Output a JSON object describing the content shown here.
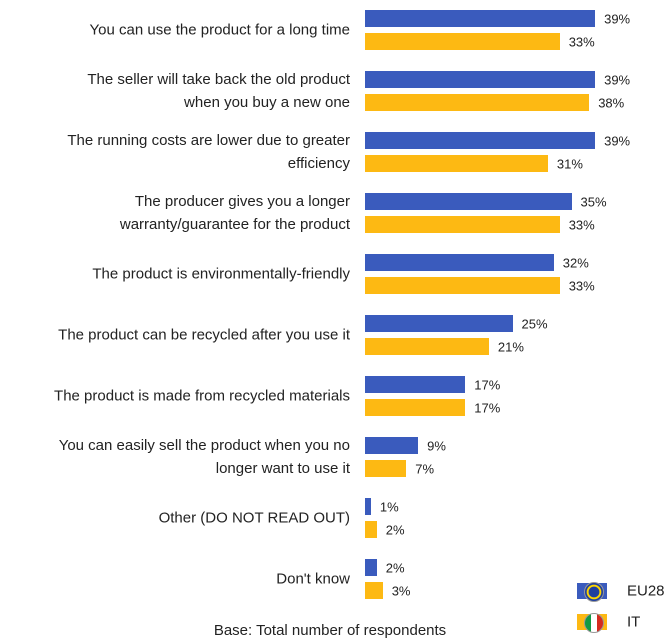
{
  "chart_data": {
    "type": "hbar",
    "categories": [
      "You can use the product for a long time",
      "The seller will take back the old product\nwhen you buy a new one",
      "The running costs are lower due to greater\nefficiency",
      "The producer gives you a longer\nwarranty/guarantee for the product",
      "The product is environmentally-friendly",
      "The product can be recycled after you use it",
      "The product is made from recycled materials",
      "You can easily sell the product when you no\nlonger want to use it",
      "Other (DO NOT READ OUT)",
      "Don't know"
    ],
    "series": [
      {
        "name": "EU28",
        "color": "#3a5bbd",
        "values": [
          39,
          39,
          39,
          35,
          32,
          25,
          17,
          9,
          1,
          2
        ],
        "value_labels": [
          "39%",
          "39%",
          "39%",
          "35%",
          "32%",
          "25%",
          "17%",
          "9%",
          "1%",
          "2%"
        ]
      },
      {
        "name": "IT",
        "color": "#fdb913",
        "values": [
          33,
          38,
          31,
          33,
          33,
          21,
          17,
          7,
          2,
          3
        ],
        "value_labels": [
          "33%",
          "38%",
          "31%",
          "33%",
          "33%",
          "21%",
          "17%",
          "7%",
          "2%",
          "3%"
        ]
      }
    ],
    "footnote": "Base: Total number of respondents",
    "legend": "bottom-right"
  }
}
